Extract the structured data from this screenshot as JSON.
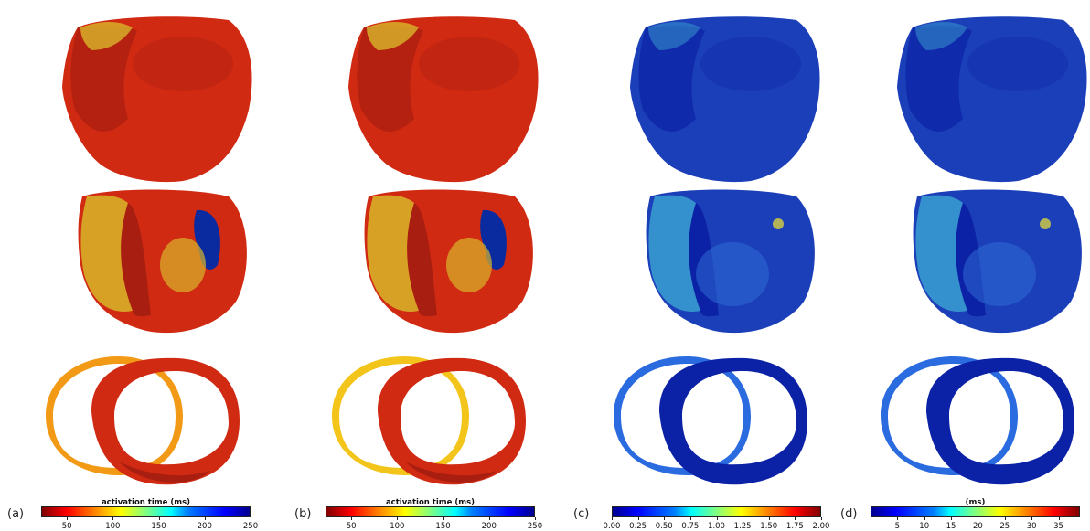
{
  "panels": [
    {
      "label": "(a)",
      "colorbar": {
        "title": "activation time (ms)",
        "ticks": [
          "50",
          "100",
          "150",
          "200",
          "250"
        ],
        "min": 22,
        "max": 250,
        "tick_values": [
          50,
          100,
          150,
          200,
          250
        ],
        "colormap": "jet_r"
      }
    },
    {
      "label": "(b)",
      "colorbar": {
        "title": "activation time (ms)",
        "ticks": [
          "50",
          "100",
          "150",
          "200",
          "250"
        ],
        "min": 22,
        "max": 250,
        "tick_values": [
          50,
          100,
          150,
          200,
          250
        ],
        "colormap": "jet_r"
      }
    },
    {
      "label": "(c)",
      "colorbar": {
        "title": "",
        "ticks": [
          "0.00",
          "0.25",
          "0.50",
          "0.75",
          "1.00",
          "1.25",
          "1.50",
          "1.75",
          "2.00"
        ],
        "min": 0,
        "max": 2,
        "tick_values": [
          0,
          0.25,
          0.5,
          0.75,
          1,
          1.25,
          1.5,
          1.75,
          2
        ],
        "colormap": "jet"
      }
    },
    {
      "label": "(d)",
      "colorbar": {
        "title": "(ms)",
        "ticks": [
          "5",
          "10",
          "15",
          "20",
          "25",
          "30",
          "35"
        ],
        "min": 0,
        "max": 39,
        "tick_values": [
          5,
          10,
          15,
          20,
          25,
          30,
          35
        ],
        "colormap": "jet"
      }
    }
  ],
  "colors": {
    "warm_primary": "#d02a12",
    "warm_dark": "#a81e10",
    "warm_yellow": "#d8b62a",
    "cool_primary": "#1b3fb8",
    "cool_dark": "#0c22a6"
  }
}
